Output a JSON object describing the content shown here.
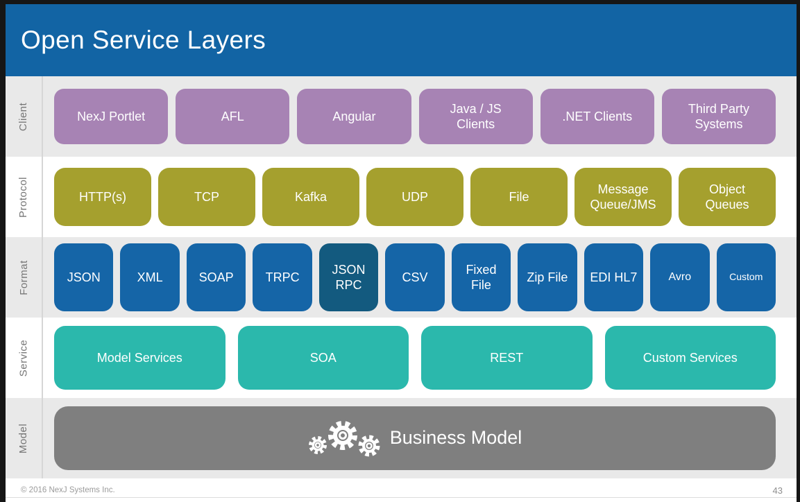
{
  "title": "Open Service Layers",
  "header": {
    "bg": "#1264a4"
  },
  "frame": {
    "border_color": "#161616"
  },
  "footer": {
    "copyright": "© 2016 NexJ Systems Inc.",
    "page_number": "43"
  },
  "divider_color": "#d6d6d6",
  "layers": [
    {
      "id": "client",
      "label": "Client",
      "row_bg": "#e9e9e9",
      "box_color": "#a783b4",
      "items": [
        {
          "label": "NexJ Portlet"
        },
        {
          "label": "AFL"
        },
        {
          "label": "Angular"
        },
        {
          "label": "Java / JS Clients"
        },
        {
          "label": ".NET Clients"
        },
        {
          "label": "Third Party Systems"
        }
      ]
    },
    {
      "id": "protocol",
      "label": "Protocol",
      "row_bg": "#ffffff",
      "box_color": "#a5a02e",
      "items": [
        {
          "label": "HTTP(s)"
        },
        {
          "label": "TCP"
        },
        {
          "label": "Kafka"
        },
        {
          "label": "UDP"
        },
        {
          "label": "File"
        },
        {
          "label": "Message Queue/JMS"
        },
        {
          "label": "Object Queues"
        }
      ]
    },
    {
      "id": "format",
      "label": "Format",
      "row_bg": "#e9e9e9",
      "box_color": "#1565a7",
      "items": [
        {
          "label": "JSON"
        },
        {
          "label": "XML"
        },
        {
          "label": "SOAP"
        },
        {
          "label": "TRPC"
        },
        {
          "label": "JSON RPC",
          "bg": "#135a7f"
        },
        {
          "label": "CSV"
        },
        {
          "label": "Fixed File"
        },
        {
          "label": "Zip File"
        },
        {
          "label": "EDI HL7"
        },
        {
          "label": "Avro",
          "text_size": "sm"
        },
        {
          "label": "Custom",
          "text_size": "xs"
        }
      ]
    },
    {
      "id": "service",
      "label": "Service",
      "row_bg": "#ffffff",
      "box_color": "#2bb8ac",
      "items": [
        {
          "label": "Model Services"
        },
        {
          "label": "SOA"
        },
        {
          "label": "REST"
        },
        {
          "label": "Custom Services"
        }
      ]
    },
    {
      "id": "model",
      "label": "Model",
      "row_bg": "#e9e9e9",
      "box_color": "#7f7f7f",
      "items": [
        {
          "label": "Business Model",
          "icon": "gears-icon"
        }
      ]
    }
  ]
}
